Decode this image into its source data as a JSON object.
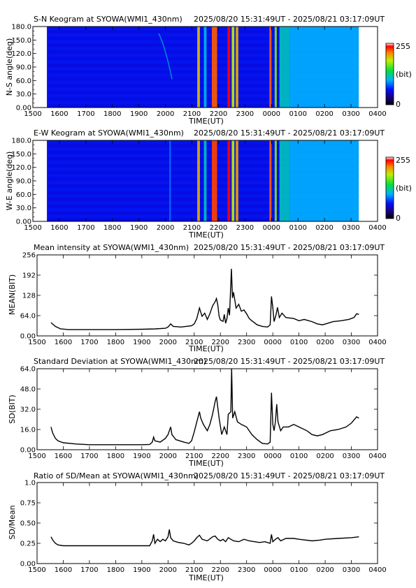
{
  "time_range": "2025/08/20 15:31:49UT - 2025/08/21 03:17:09UT",
  "x_ticks": [
    "1500",
    "1600",
    "1700",
    "1800",
    "1900",
    "2000",
    "2100",
    "2200",
    "2300",
    "0000",
    "0100",
    "0200",
    "0300",
    "0400"
  ],
  "x_label": "TIME(UT)",
  "keogram_y_ticks": [
    "180.0",
    "150.0",
    "120.0",
    "90.0",
    "60.0",
    "30.0",
    "0.00"
  ],
  "colorbar_labels": {
    "max": "255",
    "mid": "(bit)",
    "min": "0"
  },
  "chart_data": [
    {
      "type": "heatmap",
      "title": "S-N Keogram at SYOWA(WMI1_430nm)",
      "ylabel": "N-S angle(deg)",
      "xlabel": "TIME(UT)",
      "xlim": [
        15.0,
        28.0
      ],
      "ylim": [
        0,
        180
      ],
      "data_range": [
        15.53,
        27.29
      ],
      "colorbar": [
        0,
        255
      ],
      "bright_bands": [
        {
          "t0": 21.2,
          "t1": 21.3,
          "v": 0.78
        },
        {
          "t0": 21.45,
          "t1": 21.55,
          "v": 0.42
        },
        {
          "t0": 21.75,
          "t1": 21.95,
          "v": 0.88
        },
        {
          "t0": 22.34,
          "t1": 22.44,
          "v": 0.95
        },
        {
          "t0": 22.5,
          "t1": 22.6,
          "v": 0.72
        },
        {
          "t0": 22.65,
          "t1": 22.75,
          "v": 0.8
        },
        {
          "t0": 23.92,
          "t1": 24.0,
          "v": 0.88
        },
        {
          "t0": 24.12,
          "t1": 24.2,
          "v": 0.65
        },
        {
          "t0": 24.3,
          "t1": 24.7,
          "v": 0.45
        },
        {
          "t0": 24.7,
          "t1": 27.29,
          "v": 0.4
        }
      ],
      "faint_arc": {
        "t_start": 19.75,
        "t_end": 20.25,
        "v": 0.3
      }
    },
    {
      "type": "heatmap",
      "title": "E-W Keogram at SYOWA(WMI1_430nm)",
      "ylabel": "W-E angle(deg)",
      "xlabel": "TIME(UT)",
      "xlim": [
        15.0,
        28.0
      ],
      "ylim": [
        0,
        180
      ],
      "data_range": [
        15.53,
        27.29
      ],
      "colorbar": [
        0,
        255
      ],
      "bright_bands": [
        {
          "t0": 20.15,
          "t1": 20.2,
          "v": 0.35
        },
        {
          "t0": 21.2,
          "t1": 21.3,
          "v": 0.8
        },
        {
          "t0": 21.45,
          "t1": 21.55,
          "v": 0.45
        },
        {
          "t0": 21.75,
          "t1": 21.95,
          "v": 0.9
        },
        {
          "t0": 22.34,
          "t1": 22.44,
          "v": 0.95
        },
        {
          "t0": 22.5,
          "t1": 22.6,
          "v": 0.72
        },
        {
          "t0": 22.65,
          "t1": 22.75,
          "v": 0.82
        },
        {
          "t0": 23.92,
          "t1": 24.0,
          "v": 0.88
        },
        {
          "t0": 24.12,
          "t1": 24.2,
          "v": 0.65
        },
        {
          "t0": 24.3,
          "t1": 24.7,
          "v": 0.45
        },
        {
          "t0": 24.7,
          "t1": 27.29,
          "v": 0.4
        }
      ]
    },
    {
      "type": "line",
      "title": "Mean intensity at SYOWA(WMI1_430nm)",
      "ylabel": "MEAN(BIT)",
      "xlabel": "TIME(UT)",
      "xlim": [
        15.0,
        28.0
      ],
      "ylim": [
        0,
        256
      ],
      "y_ticks": [
        "0.00",
        "64.0",
        "128",
        "192",
        "256"
      ],
      "points": [
        [
          15.53,
          42
        ],
        [
          15.7,
          30
        ],
        [
          15.9,
          22
        ],
        [
          16.2,
          20
        ],
        [
          17.0,
          20
        ],
        [
          18.0,
          20
        ],
        [
          19.0,
          21
        ],
        [
          19.5,
          22
        ],
        [
          19.9,
          24
        ],
        [
          20.0,
          28
        ],
        [
          20.1,
          38
        ],
        [
          20.2,
          30
        ],
        [
          20.5,
          28
        ],
        [
          20.9,
          32
        ],
        [
          21.0,
          38
        ],
        [
          21.1,
          55
        ],
        [
          21.2,
          88
        ],
        [
          21.3,
          62
        ],
        [
          21.4,
          72
        ],
        [
          21.5,
          52
        ],
        [
          21.6,
          70
        ],
        [
          21.7,
          95
        ],
        [
          21.8,
          108
        ],
        [
          21.85,
          118
        ],
        [
          21.9,
          98
        ],
        [
          21.95,
          62
        ],
        [
          22.0,
          50
        ],
        [
          22.1,
          46
        ],
        [
          22.15,
          68
        ],
        [
          22.2,
          40
        ],
        [
          22.25,
          55
        ],
        [
          22.3,
          88
        ],
        [
          22.35,
          65
        ],
        [
          22.42,
          212
        ],
        [
          22.46,
          120
        ],
        [
          22.5,
          138
        ],
        [
          22.6,
          88
        ],
        [
          22.7,
          100
        ],
        [
          22.8,
          78
        ],
        [
          22.9,
          82
        ],
        [
          23.0,
          70
        ],
        [
          23.1,
          55
        ],
        [
          23.2,
          48
        ],
        [
          23.4,
          35
        ],
        [
          23.6,
          30
        ],
        [
          23.8,
          28
        ],
        [
          23.9,
          35
        ],
        [
          23.95,
          125
        ],
        [
          24.0,
          90
        ],
        [
          24.05,
          45
        ],
        [
          24.12,
          65
        ],
        [
          24.18,
          90
        ],
        [
          24.25,
          58
        ],
        [
          24.35,
          72
        ],
        [
          24.5,
          58
        ],
        [
          24.8,
          55
        ],
        [
          25.0,
          48
        ],
        [
          25.2,
          52
        ],
        [
          25.5,
          45
        ],
        [
          25.7,
          38
        ],
        [
          25.9,
          35
        ],
        [
          26.1,
          40
        ],
        [
          26.3,
          45
        ],
        [
          26.6,
          48
        ],
        [
          26.9,
          52
        ],
        [
          27.1,
          58
        ],
        [
          27.2,
          70
        ],
        [
          27.29,
          68
        ]
      ]
    },
    {
      "type": "line",
      "title": "Standard Deviation at SYOWA(WMI1_430nm)",
      "ylabel": "SD(BIT)",
      "xlabel": "TIME(UT)",
      "xlim": [
        15.0,
        28.0
      ],
      "ylim": [
        0,
        64
      ],
      "y_ticks": [
        "0.00",
        "16.0",
        "32.0",
        "48.0",
        "64.0"
      ],
      "points": [
        [
          15.53,
          18
        ],
        [
          15.6,
          13
        ],
        [
          15.7,
          9
        ],
        [
          15.8,
          7
        ],
        [
          16.0,
          5.5
        ],
        [
          16.5,
          4.5
        ],
        [
          17.0,
          4
        ],
        [
          18.0,
          4
        ],
        [
          19.0,
          4
        ],
        [
          19.3,
          4.2
        ],
        [
          19.4,
          6
        ],
        [
          19.45,
          10
        ],
        [
          19.5,
          7
        ],
        [
          19.7,
          6
        ],
        [
          19.9,
          9
        ],
        [
          20.0,
          12
        ],
        [
          20.1,
          18
        ],
        [
          20.15,
          12
        ],
        [
          20.3,
          8
        ],
        [
          20.6,
          6
        ],
        [
          20.8,
          5
        ],
        [
          20.9,
          7
        ],
        [
          21.0,
          14
        ],
        [
          21.1,
          22
        ],
        [
          21.2,
          30
        ],
        [
          21.25,
          25
        ],
        [
          21.35,
          20
        ],
        [
          21.5,
          15
        ],
        [
          21.6,
          20
        ],
        [
          21.7,
          28
        ],
        [
          21.8,
          38
        ],
        [
          21.85,
          42
        ],
        [
          21.95,
          25
        ],
        [
          22.05,
          12
        ],
        [
          22.15,
          18
        ],
        [
          22.25,
          12
        ],
        [
          22.3,
          28
        ],
        [
          22.4,
          30
        ],
        [
          22.43,
          68
        ],
        [
          22.47,
          25
        ],
        [
          22.55,
          30
        ],
        [
          22.65,
          22
        ],
        [
          22.8,
          20
        ],
        [
          23.0,
          18
        ],
        [
          23.2,
          12
        ],
        [
          23.4,
          8
        ],
        [
          23.6,
          5
        ],
        [
          23.8,
          4.5
        ],
        [
          23.9,
          6
        ],
        [
          23.95,
          45
        ],
        [
          24.0,
          20
        ],
        [
          24.05,
          15
        ],
        [
          24.1,
          22
        ],
        [
          24.15,
          36
        ],
        [
          24.2,
          22
        ],
        [
          24.3,
          15
        ],
        [
          24.4,
          18
        ],
        [
          24.6,
          18
        ],
        [
          24.8,
          20
        ],
        [
          25.0,
          18
        ],
        [
          25.3,
          15
        ],
        [
          25.5,
          12
        ],
        [
          25.7,
          11
        ],
        [
          25.9,
          12
        ],
        [
          26.2,
          15
        ],
        [
          26.5,
          16
        ],
        [
          26.8,
          18
        ],
        [
          27.0,
          21
        ],
        [
          27.2,
          26
        ],
        [
          27.29,
          25
        ]
      ]
    },
    {
      "type": "line",
      "title": "Ratio of SD/Mean at SYOWA(WMI1_430nm)",
      "ylabel": "SD/Mean",
      "xlabel": "TIME(UT)",
      "xlim": [
        15.0,
        28.0
      ],
      "ylim": [
        0,
        1.0
      ],
      "y_ticks": [
        "0.00",
        "0.25",
        "0.50",
        "0.75",
        "1.0"
      ],
      "points": [
        [
          15.53,
          0.33
        ],
        [
          15.6,
          0.29
        ],
        [
          15.7,
          0.25
        ],
        [
          15.8,
          0.23
        ],
        [
          16.0,
          0.22
        ],
        [
          16.5,
          0.22
        ],
        [
          17.0,
          0.22
        ],
        [
          18.0,
          0.22
        ],
        [
          19.0,
          0.22
        ],
        [
          19.3,
          0.22
        ],
        [
          19.4,
          0.28
        ],
        [
          19.45,
          0.36
        ],
        [
          19.5,
          0.25
        ],
        [
          19.6,
          0.3
        ],
        [
          19.7,
          0.27
        ],
        [
          19.8,
          0.3
        ],
        [
          19.9,
          0.28
        ],
        [
          20.0,
          0.33
        ],
        [
          20.05,
          0.42
        ],
        [
          20.1,
          0.32
        ],
        [
          20.2,
          0.28
        ],
        [
          20.4,
          0.26
        ],
        [
          20.6,
          0.25
        ],
        [
          20.8,
          0.23
        ],
        [
          20.9,
          0.25
        ],
        [
          21.0,
          0.28
        ],
        [
          21.1,
          0.32
        ],
        [
          21.2,
          0.35
        ],
        [
          21.3,
          0.3
        ],
        [
          21.5,
          0.28
        ],
        [
          21.7,
          0.33
        ],
        [
          21.8,
          0.34
        ],
        [
          21.9,
          0.3
        ],
        [
          22.0,
          0.28
        ],
        [
          22.1,
          0.3
        ],
        [
          22.2,
          0.27
        ],
        [
          22.3,
          0.32
        ],
        [
          22.4,
          0.3
        ],
        [
          22.5,
          0.28
        ],
        [
          22.7,
          0.27
        ],
        [
          22.9,
          0.3
        ],
        [
          23.1,
          0.28
        ],
        [
          23.3,
          0.27
        ],
        [
          23.5,
          0.26
        ],
        [
          23.7,
          0.27
        ],
        [
          23.9,
          0.25
        ],
        [
          23.95,
          0.36
        ],
        [
          24.0,
          0.27
        ],
        [
          24.1,
          0.3
        ],
        [
          24.2,
          0.32
        ],
        [
          24.3,
          0.28
        ],
        [
          24.5,
          0.31
        ],
        [
          24.8,
          0.31
        ],
        [
          25.0,
          0.3
        ],
        [
          25.5,
          0.28
        ],
        [
          25.8,
          0.29
        ],
        [
          26.0,
          0.3
        ],
        [
          26.5,
          0.31
        ],
        [
          27.0,
          0.32
        ],
        [
          27.29,
          0.33
        ]
      ]
    }
  ]
}
